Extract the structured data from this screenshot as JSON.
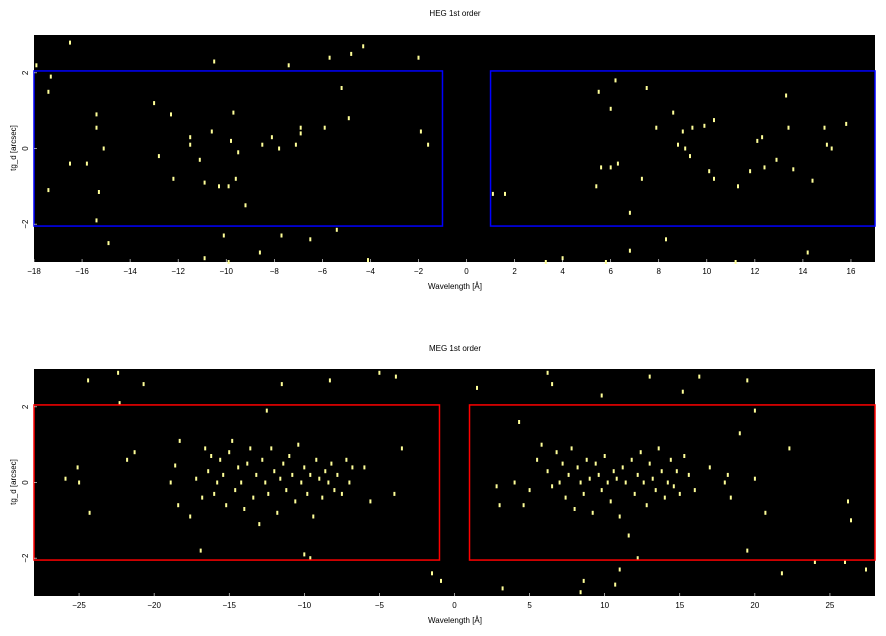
{
  "chart_data": [
    {
      "type": "scatter",
      "title": "HEG 1st order",
      "xlabel": "Wavelength [Å]",
      "ylabel": "tg_d [arcsec]",
      "xlim": [
        -18,
        17
      ],
      "ylim": [
        -3,
        3
      ],
      "xticks": [
        -18,
        -16,
        -14,
        -12,
        -10,
        -8,
        -6,
        -4,
        -2,
        0,
        2,
        4,
        6,
        8,
        10,
        12,
        14,
        16
      ],
      "xtick_labels": [
        "−18",
        "−16",
        "−14",
        "−12",
        "−10",
        "−8",
        "−6",
        "−4",
        "−2",
        "0",
        "2",
        "4",
        "6",
        "8",
        "10",
        "12",
        "14",
        "16"
      ],
      "yticks": [
        -2,
        0,
        2
      ],
      "ytick_labels": [
        "−2",
        "0",
        "2"
      ],
      "background": "#000000",
      "point_color": "#ffff99",
      "region_color": "#0000ff",
      "regions": [
        {
          "x": [
            -18,
            -1
          ],
          "y": [
            -2.05,
            2.05
          ]
        },
        {
          "x": [
            1,
            17
          ],
          "y": [
            -2.05,
            2.05
          ]
        }
      ],
      "points": [
        [
          -17.9,
          2.2
        ],
        [
          -17.3,
          1.9
        ],
        [
          -17.4,
          1.5
        ],
        [
          -17.4,
          -1.1
        ],
        [
          -16.5,
          2.8
        ],
        [
          -16.5,
          -0.4
        ],
        [
          -15.8,
          -0.4
        ],
        [
          -15.4,
          0.9
        ],
        [
          -15.4,
          0.55
        ],
        [
          -15.3,
          -1.15
        ],
        [
          -15.1,
          0.0
        ],
        [
          -15.4,
          -1.9
        ],
        [
          -14.9,
          -2.5
        ],
        [
          -13.0,
          1.2
        ],
        [
          -12.8,
          -0.2
        ],
        [
          -12.3,
          0.9
        ],
        [
          -12.2,
          -0.8
        ],
        [
          -11.5,
          0.3
        ],
        [
          -11.5,
          0.1
        ],
        [
          -11.1,
          -0.3
        ],
        [
          -10.9,
          -0.9
        ],
        [
          -10.6,
          0.45
        ],
        [
          -10.5,
          2.3
        ],
        [
          -10.3,
          -1.0
        ],
        [
          -10.1,
          -2.3
        ],
        [
          -9.9,
          -1.0
        ],
        [
          -9.8,
          0.2
        ],
        [
          -9.7,
          0.95
        ],
        [
          -9.6,
          -0.8
        ],
        [
          -9.5,
          -0.1
        ],
        [
          -9.2,
          -1.5
        ],
        [
          -8.5,
          0.1
        ],
        [
          -8.6,
          -2.75
        ],
        [
          -8.1,
          0.3
        ],
        [
          -7.8,
          0.0
        ],
        [
          -7.7,
          -2.3
        ],
        [
          -7.4,
          2.2
        ],
        [
          -7.1,
          0.1
        ],
        [
          -6.9,
          0.4
        ],
        [
          -6.9,
          0.55
        ],
        [
          -6.5,
          -2.4
        ],
        [
          -5.9,
          0.55
        ],
        [
          -5.2,
          1.6
        ],
        [
          -4.9,
          0.8
        ],
        [
          -5.7,
          2.4
        ],
        [
          -4.8,
          2.5
        ],
        [
          -4.3,
          2.7
        ],
        [
          -2.0,
          2.4
        ],
        [
          -1.9,
          0.45
        ],
        [
          -1.6,
          0.1
        ],
        [
          -5.4,
          -2.15
        ],
        [
          -10.9,
          -2.9
        ],
        [
          -9.9,
          -3.0
        ],
        [
          -4.1,
          -2.95
        ],
        [
          1.1,
          -1.2
        ],
        [
          1.6,
          -1.2
        ],
        [
          4.0,
          -2.9
        ],
        [
          5.5,
          1.5
        ],
        [
          6.0,
          1.05
        ],
        [
          6.2,
          1.8
        ],
        [
          5.6,
          -0.5
        ],
        [
          6.0,
          -0.5
        ],
        [
          6.3,
          -0.4
        ],
        [
          5.4,
          -1.0
        ],
        [
          6.8,
          -2.7
        ],
        [
          6.8,
          -1.7
        ],
        [
          7.3,
          -0.8
        ],
        [
          7.9,
          0.55
        ],
        [
          8.3,
          -2.4
        ],
        [
          8.6,
          0.95
        ],
        [
          8.8,
          0.1
        ],
        [
          9.1,
          0.0
        ],
        [
          9.3,
          -0.2
        ],
        [
          9.0,
          0.45
        ],
        [
          9.4,
          0.55
        ],
        [
          9.9,
          0.6
        ],
        [
          10.3,
          0.75
        ],
        [
          10.1,
          -0.6
        ],
        [
          10.3,
          -0.8
        ],
        [
          11.3,
          -1.0
        ],
        [
          11.8,
          -0.6
        ],
        [
          12.1,
          0.2
        ],
        [
          12.3,
          0.3
        ],
        [
          12.4,
          -0.5
        ],
        [
          13.3,
          1.4
        ],
        [
          13.4,
          0.55
        ],
        [
          13.6,
          -0.55
        ],
        [
          14.2,
          -2.75
        ],
        [
          14.4,
          -0.85
        ],
        [
          14.9,
          0.55
        ],
        [
          15.0,
          0.1
        ],
        [
          15.2,
          0.0
        ],
        [
          15.8,
          0.65
        ],
        [
          12.9,
          -0.3
        ],
        [
          7.5,
          1.6
        ],
        [
          11.2,
          -3.0
        ],
        [
          3.3,
          -3.0
        ],
        [
          5.8,
          -3.0
        ]
      ]
    },
    {
      "type": "scatter",
      "title": "MEG 1st order",
      "xlabel": "Wavelength [Å]",
      "ylabel": "tg_d [arcsec]",
      "xlim": [
        -28,
        28
      ],
      "ylim": [
        -3,
        3
      ],
      "xticks": [
        -25,
        -20,
        -15,
        -10,
        -5,
        0,
        5,
        10,
        15,
        20,
        25
      ],
      "xtick_labels": [
        "−25",
        "−20",
        "−15",
        "−10",
        "−5",
        "0",
        "5",
        "10",
        "15",
        "20",
        "25"
      ],
      "yticks": [
        -2,
        0,
        2
      ],
      "ytick_labels": [
        "−2",
        "0",
        "2"
      ],
      "background": "#000000",
      "point_color": "#ffff99",
      "region_color": "#ff0000",
      "regions": [
        {
          "x": [
            -28,
            -1
          ],
          "y": [
            -2.05,
            2.05
          ]
        },
        {
          "x": [
            1,
            28
          ],
          "y": [
            -2.05,
            2.05
          ]
        }
      ],
      "points": [
        [
          -25.9,
          0.1
        ],
        [
          -25.1,
          0.4
        ],
        [
          -25.0,
          0.0
        ],
        [
          -24.3,
          -0.8
        ],
        [
          -24.4,
          2.7
        ],
        [
          -22.4,
          2.9
        ],
        [
          -22.3,
          2.1
        ],
        [
          -21.8,
          0.6
        ],
        [
          -20.7,
          2.6
        ],
        [
          -21.3,
          0.8
        ],
        [
          -18.9,
          0.0
        ],
        [
          -18.6,
          0.45
        ],
        [
          -18.4,
          -0.6
        ],
        [
          -18.3,
          1.1
        ],
        [
          -17.6,
          -0.9
        ],
        [
          -17.2,
          0.1
        ],
        [
          -16.8,
          -0.4
        ],
        [
          -16.6,
          0.9
        ],
        [
          -16.4,
          0.3
        ],
        [
          -16.2,
          0.7
        ],
        [
          -16.0,
          -0.3
        ],
        [
          -15.8,
          0.0
        ],
        [
          -15.6,
          0.6
        ],
        [
          -15.4,
          0.2
        ],
        [
          -15.2,
          -0.6
        ],
        [
          -15.0,
          0.8
        ],
        [
          -14.8,
          1.1
        ],
        [
          -14.6,
          -0.2
        ],
        [
          -14.4,
          0.4
        ],
        [
          -14.2,
          0.0
        ],
        [
          -14.0,
          -0.7
        ],
        [
          -13.8,
          0.5
        ],
        [
          -13.6,
          0.9
        ],
        [
          -13.4,
          -0.4
        ],
        [
          -13.2,
          0.2
        ],
        [
          -13.0,
          -1.1
        ],
        [
          -12.8,
          0.6
        ],
        [
          -12.6,
          0.0
        ],
        [
          -12.4,
          -0.3
        ],
        [
          -12.2,
          0.9
        ],
        [
          -12.0,
          0.3
        ],
        [
          -11.8,
          -0.8
        ],
        [
          -11.6,
          0.1
        ],
        [
          -11.4,
          0.5
        ],
        [
          -11.2,
          -0.2
        ],
        [
          -11.0,
          0.7
        ],
        [
          -10.8,
          0.2
        ],
        [
          -10.6,
          -0.5
        ],
        [
          -10.4,
          1.0
        ],
        [
          -10.2,
          0.0
        ],
        [
          -10.0,
          0.4
        ],
        [
          -9.8,
          -0.3
        ],
        [
          -9.6,
          0.2
        ],
        [
          -9.4,
          -0.9
        ],
        [
          -9.2,
          0.6
        ],
        [
          -9.0,
          0.1
        ],
        [
          -8.8,
          -0.4
        ],
        [
          -8.6,
          0.3
        ],
        [
          -8.4,
          0.0
        ],
        [
          -8.2,
          0.5
        ],
        [
          -8.0,
          -0.2
        ],
        [
          -7.8,
          0.2
        ],
        [
          -7.5,
          -0.3
        ],
        [
          -7.2,
          0.6
        ],
        [
          -7.0,
          0.0
        ],
        [
          -6.8,
          0.4
        ],
        [
          -6.0,
          0.4
        ],
        [
          -5.6,
          -0.5
        ],
        [
          -4.0,
          -0.3
        ],
        [
          -3.5,
          0.9
        ],
        [
          -3.9,
          2.8
        ],
        [
          -5.0,
          2.9
        ],
        [
          -8.3,
          2.7
        ],
        [
          -11.5,
          2.6
        ],
        [
          -12.5,
          1.9
        ],
        [
          -16.9,
          -1.8
        ],
        [
          -10.0,
          -1.9
        ],
        [
          -9.6,
          -2.0
        ],
        [
          -1.5,
          -2.4
        ],
        [
          -0.9,
          -2.6
        ],
        [
          1.5,
          2.5
        ],
        [
          2.8,
          -0.1
        ],
        [
          3.0,
          -0.6
        ],
        [
          4.0,
          0.0
        ],
        [
          4.6,
          -0.6
        ],
        [
          5.0,
          -0.2
        ],
        [
          5.5,
          0.6
        ],
        [
          5.8,
          1.0
        ],
        [
          6.2,
          0.3
        ],
        [
          6.5,
          -0.1
        ],
        [
          6.8,
          0.8
        ],
        [
          7.0,
          0.0
        ],
        [
          7.2,
          0.5
        ],
        [
          7.4,
          -0.4
        ],
        [
          7.6,
          0.2
        ],
        [
          7.8,
          0.9
        ],
        [
          8.0,
          -0.7
        ],
        [
          8.2,
          0.4
        ],
        [
          8.4,
          0.0
        ],
        [
          8.6,
          -0.3
        ],
        [
          8.8,
          0.6
        ],
        [
          9.0,
          0.1
        ],
        [
          9.2,
          -0.8
        ],
        [
          9.4,
          0.5
        ],
        [
          9.6,
          0.2
        ],
        [
          9.8,
          -0.2
        ],
        [
          10.0,
          0.7
        ],
        [
          10.2,
          0.0
        ],
        [
          10.4,
          -0.5
        ],
        [
          10.6,
          0.3
        ],
        [
          10.8,
          0.1
        ],
        [
          11.0,
          -0.9
        ],
        [
          11.2,
          0.4
        ],
        [
          11.4,
          0.0
        ],
        [
          11.6,
          -1.4
        ],
        [
          11.8,
          0.6
        ],
        [
          12.0,
          -0.3
        ],
        [
          12.2,
          0.2
        ],
        [
          12.4,
          0.8
        ],
        [
          12.6,
          0.0
        ],
        [
          12.8,
          -0.6
        ],
        [
          13.0,
          0.5
        ],
        [
          13.2,
          0.1
        ],
        [
          13.4,
          -0.2
        ],
        [
          13.6,
          0.9
        ],
        [
          13.8,
          0.3
        ],
        [
          14.0,
          -0.4
        ],
        [
          14.2,
          0.0
        ],
        [
          14.4,
          0.6
        ],
        [
          14.6,
          -0.1
        ],
        [
          14.8,
          0.3
        ],
        [
          15.0,
          -0.3
        ],
        [
          15.3,
          0.7
        ],
        [
          15.6,
          0.2
        ],
        [
          16.0,
          -0.2
        ],
        [
          17.0,
          0.4
        ],
        [
          18.4,
          -0.4
        ],
        [
          19.0,
          1.3
        ],
        [
          19.5,
          -1.8
        ],
        [
          20.0,
          0.1
        ],
        [
          20.7,
          -0.8
        ],
        [
          9.8,
          2.3
        ],
        [
          13.0,
          2.8
        ],
        [
          15.2,
          2.4
        ],
        [
          19.5,
          2.7
        ],
        [
          20.0,
          1.9
        ],
        [
          24.0,
          -2.1
        ],
        [
          26.0,
          -2.1
        ],
        [
          26.2,
          -0.5
        ],
        [
          26.4,
          -1.0
        ],
        [
          27.4,
          -2.3
        ],
        [
          21.8,
          -2.4
        ],
        [
          18.0,
          0.0
        ],
        [
          12.2,
          -2.0
        ],
        [
          11.0,
          -2.3
        ],
        [
          8.6,
          -2.6
        ],
        [
          8.4,
          -2.9
        ],
        [
          10.7,
          -2.7
        ],
        [
          6.2,
          2.9
        ],
        [
          16.3,
          2.8
        ],
        [
          18.2,
          0.2
        ],
        [
          22.3,
          0.9
        ],
        [
          4.3,
          1.6
        ],
        [
          3.2,
          -2.8
        ],
        [
          6.5,
          2.6
        ]
      ]
    }
  ]
}
